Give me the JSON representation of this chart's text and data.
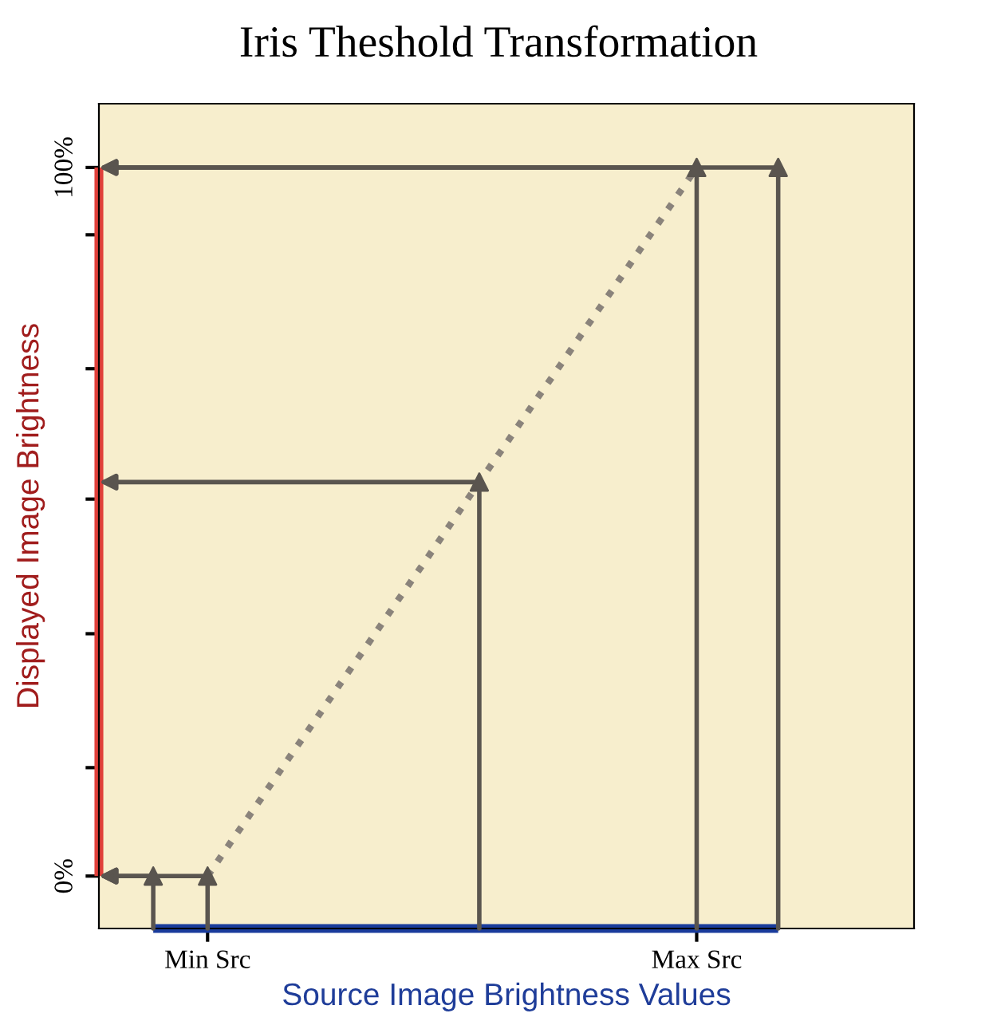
{
  "chart_data": {
    "type": "line",
    "title": "Iris Theshold Transformation",
    "xlabel": "Source Image Brightness Values",
    "ylabel": "Displayed Image Brightness",
    "categories": [
      null,
      null,
      null,
      null,
      "Min Src",
      null,
      null,
      null,
      null,
      null,
      null,
      null,
      null,
      null,
      null,
      null,
      null,
      null,
      null,
      null,
      null,
      null,
      "Max Src",
      null,
      null,
      null,
      null,
      null,
      null,
      null,
      null
    ],
    "ylim": [
      -7.4,
      109
    ],
    "yticks": [
      {
        "value": 0,
        "label": "0%"
      },
      {
        "value": 15.3,
        "label": null
      },
      {
        "value": 34.2,
        "label": null
      },
      {
        "value": 53.2,
        "label": null
      },
      {
        "value": 71.6,
        "label": null
      },
      {
        "value": 90.5,
        "label": null
      },
      {
        "value": 100,
        "label": "100%"
      }
    ],
    "grid": false,
    "legend": false,
    "series": [
      {
        "color": "#8a837b",
        "line_style": "dotted",
        "values": [
          null,
          null,
          null,
          null,
          0,
          5.6,
          11.1,
          16.7,
          22.2,
          27.8,
          33.3,
          38.9,
          44.4,
          50,
          55.6,
          61.1,
          66.7,
          72.2,
          77.8,
          83.3,
          88.9,
          94.4,
          100,
          null,
          null,
          null,
          null,
          null,
          null,
          null,
          null
        ]
      },
      {
        "type": "scatter",
        "color": "#5a554f",
        "marker": "triangle",
        "values": [
          null,
          null,
          0,
          null,
          0,
          null,
          null,
          null,
          null,
          null,
          null,
          null,
          null,
          null,
          55.6,
          null,
          null,
          null,
          null,
          null,
          null,
          null,
          100,
          null,
          null,
          100,
          null,
          null,
          null,
          null,
          null
        ]
      }
    ]
  }
}
